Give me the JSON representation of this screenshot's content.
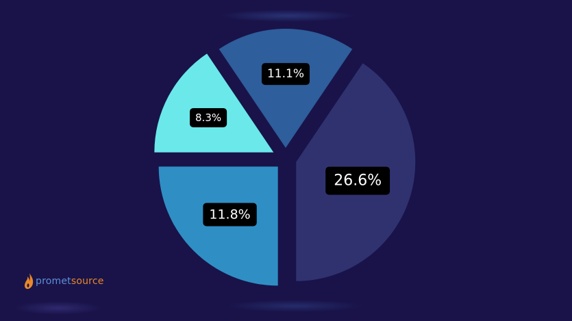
{
  "chart_data": {
    "type": "pie",
    "slices": [
      {
        "label": "26.6%",
        "value": 26.6,
        "color": "#303270"
      },
      {
        "label": "11.8%",
        "value": 11.8,
        "color": "#2f8fc4"
      },
      {
        "label": "8.3%",
        "value": 8.3,
        "color": "#6be8ea"
      },
      {
        "label": "11.1%",
        "value": 11.1,
        "color": "#2e5e9b"
      }
    ],
    "label_style": {
      "background": "#000000",
      "text_color": "#ffffff"
    }
  },
  "brand": {
    "logo": {
      "part1": "promet",
      "part2": "source"
    },
    "colors": {
      "part1": "#5f8fd8",
      "part2": "#e8882a"
    }
  }
}
